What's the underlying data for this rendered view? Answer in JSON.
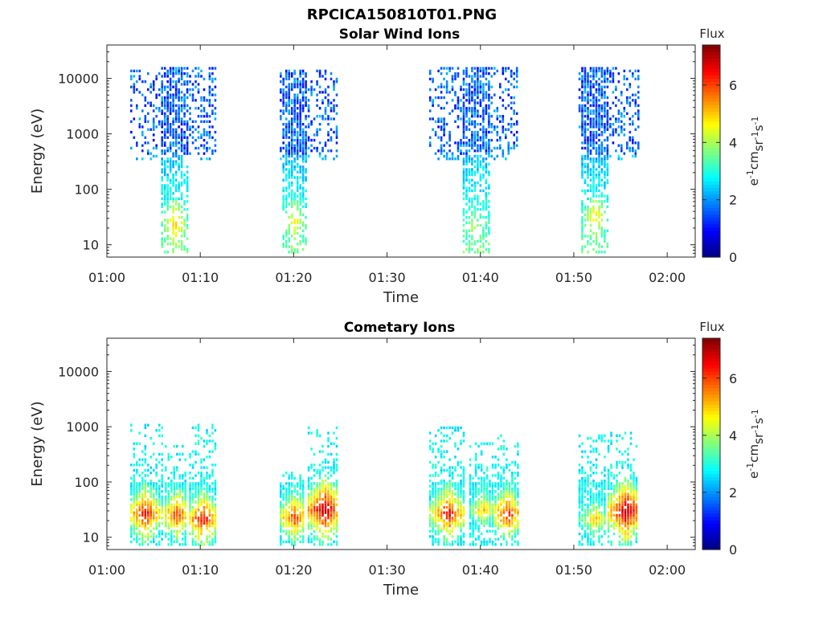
{
  "figure_title": "RPCICA150810T01.PNG",
  "chart_data": [
    {
      "type": "heatmap",
      "title": "Solar Wind Ions",
      "xlabel": "Time",
      "ylabel": "Energy (eV)",
      "x_ticks": [
        "01:00",
        "01:10",
        "01:20",
        "01:30",
        "01:40",
        "01:50",
        "02:00"
      ],
      "x_range_minutes": [
        0,
        63
      ],
      "y_scale": "log",
      "y_ticks": [
        10,
        100,
        1000,
        10000
      ],
      "y_range": [
        6,
        40000
      ],
      "colorbar": {
        "label": "Flux",
        "unit_label": "eV-1cm-2sr-1s-1",
        "ticks": [
          0,
          2,
          4,
          6
        ],
        "range": [
          0,
          7.4
        ]
      },
      "colorscale": "jet",
      "bursts": [
        {
          "start": 2.5,
          "end": 11.7,
          "core_start": 5.6,
          "core_end": 8.6,
          "peak": 7.2,
          "emax": 15000,
          "hot_energy": 22,
          "hot_value": 5.2
        },
        {
          "start": 18.5,
          "end": 24.8,
          "core_start": 18.8,
          "core_end": 21.4,
          "peak": 20.0,
          "emax": 14000,
          "hot_energy": 25,
          "hot_value": 4.8
        },
        {
          "start": 34.5,
          "end": 43.8,
          "core_start": 37.8,
          "core_end": 40.8,
          "peak": 39.2,
          "emax": 16000,
          "hot_energy": 20,
          "hot_value": 4.3
        },
        {
          "start": 50.5,
          "end": 56.8,
          "core_start": 50.8,
          "core_end": 53.5,
          "peak": 52.2,
          "emax": 15000,
          "hot_energy": 30,
          "hot_value": 5.0
        }
      ]
    },
    {
      "type": "heatmap",
      "title": "Cometary Ions",
      "xlabel": "Time",
      "ylabel": "Energy (eV)",
      "x_ticks": [
        "01:00",
        "01:10",
        "01:20",
        "01:30",
        "01:40",
        "01:50",
        "02:00"
      ],
      "x_range_minutes": [
        0,
        63
      ],
      "y_scale": "log",
      "y_ticks": [
        10,
        100,
        1000,
        10000
      ],
      "y_range": [
        6,
        40000
      ],
      "colorbar": {
        "label": "Flux",
        "unit_label": "eV-1cm-2sr-1s-1",
        "ticks": [
          0,
          2,
          4,
          6
        ],
        "range": [
          0,
          7.4
        ]
      },
      "colorscale": "jet",
      "bursts": [
        {
          "start": 2.5,
          "end": 5.8,
          "hot_center": 4.0,
          "hot_energy": 25,
          "hot_value": 6.6,
          "emax": 1100
        },
        {
          "start": 6.2,
          "end": 8.6,
          "hot_center": 7.4,
          "hot_energy": 25,
          "hot_value": 6.2,
          "emax": 500
        },
        {
          "start": 8.8,
          "end": 11.8,
          "hot_center": 10.2,
          "hot_energy": 20,
          "hot_value": 6.6,
          "emax": 1100
        },
        {
          "start": 18.5,
          "end": 21.2,
          "hot_center": 20.0,
          "hot_energy": 22,
          "hot_value": 6.2,
          "emax": 150
        },
        {
          "start": 21.5,
          "end": 24.8,
          "hot_center": 23.2,
          "hot_energy": 30,
          "hot_value": 7.2,
          "emax": 1000
        },
        {
          "start": 34.5,
          "end": 38.2,
          "hot_center": 36.5,
          "hot_energy": 25,
          "hot_value": 6.6,
          "emax": 1000
        },
        {
          "start": 38.8,
          "end": 41.2,
          "hot_center": 40.2,
          "hot_energy": 30,
          "hot_value": 5.2,
          "emax": 500
        },
        {
          "start": 41.5,
          "end": 44.0,
          "hot_center": 42.8,
          "hot_energy": 25,
          "hot_value": 6.4,
          "emax": 800
        },
        {
          "start": 50.5,
          "end": 53.4,
          "hot_center": 52.2,
          "hot_energy": 20,
          "hot_value": 5.2,
          "emax": 700
        },
        {
          "start": 53.6,
          "end": 56.8,
          "hot_center": 55.5,
          "hot_energy": 28,
          "hot_value": 7.2,
          "emax": 800
        }
      ]
    }
  ]
}
